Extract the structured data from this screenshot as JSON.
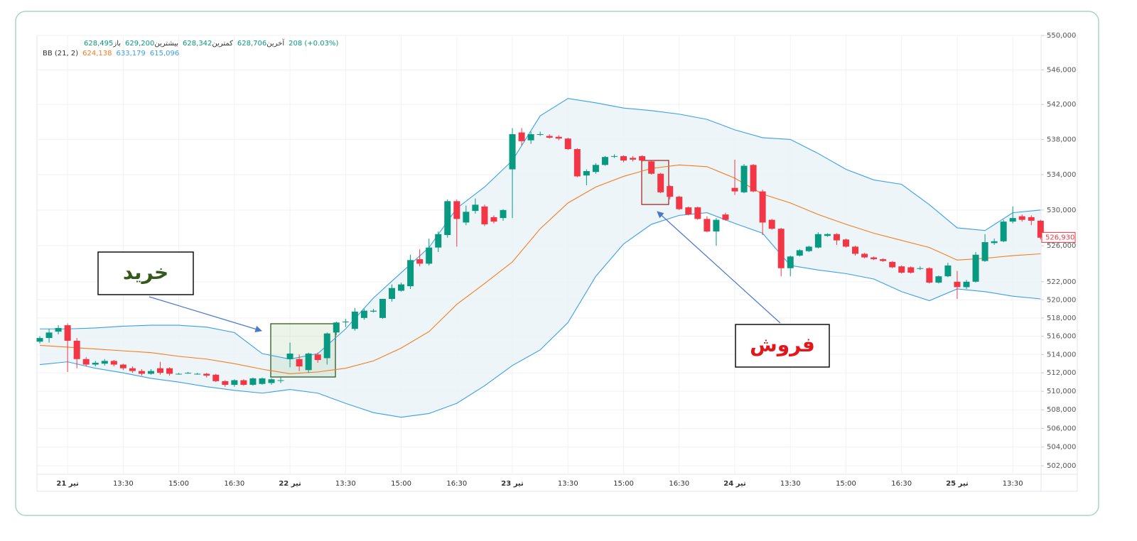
{
  "chart_data": {
    "type": "candlestick",
    "legend": {
      "items": [
        {
          "label": "باز",
          "value": "628,495"
        },
        {
          "label": "بیشترین",
          "value": "629,200"
        },
        {
          "label": "کمترین",
          "value": "628,342"
        },
        {
          "label": "آخرین",
          "value": "628,706"
        }
      ],
      "change": "208 (+0.03%)"
    },
    "categories": [
      null,
      null,
      null,
      "21 تیر",
      null,
      null,
      null,
      null,
      null,
      "13:30",
      null,
      null,
      null,
      null,
      null,
      "15:00",
      null,
      null,
      null,
      null,
      null,
      "16:30",
      null,
      null,
      null,
      null,
      null,
      "22 تیر",
      null,
      null,
      null,
      null,
      null,
      "13:30",
      null,
      null,
      null,
      null,
      null,
      "15:00",
      null,
      null,
      null,
      null,
      null,
      "16:30",
      null,
      null,
      null,
      null,
      null,
      "23 تیر",
      null,
      null,
      null,
      null,
      null,
      "13:30",
      null,
      null,
      null,
      null,
      null,
      "15:00",
      null,
      null,
      null,
      null,
      null,
      "16:30",
      null,
      null,
      null,
      null,
      null,
      "24 تیر",
      null,
      null,
      null,
      null,
      null,
      "13:30",
      null,
      null,
      null,
      null,
      null,
      "15:00",
      null,
      null,
      null,
      null,
      null,
      "16:30",
      null,
      null,
      null,
      null,
      null,
      "25 تیر",
      null,
      null,
      null,
      null,
      null,
      "13:30",
      null,
      null,
      null
    ],
    "open": [
      515400,
      515800,
      516500,
      517200,
      515500,
      513500,
      512900,
      513000,
      513300,
      512900,
      512500,
      512200,
      511900,
      512500,
      512500,
      511900,
      512000,
      511900,
      511900,
      511800,
      511100,
      510700,
      511200,
      510700,
      510800,
      510900,
      511200,
      513500,
      513500,
      512300,
      514000,
      513600,
      516400,
      517600,
      516800,
      518000,
      518700,
      518000,
      520100,
      521000,
      521500,
      524500,
      524000,
      525800,
      527200,
      531000,
      528600,
      529900,
      530400,
      529200,
      529100,
      534600,
      538800,
      537900,
      538600,
      538400,
      538300,
      538100,
      536900,
      533900,
      534300,
      535100,
      536100,
      536100,
      535900,
      536100,
      535500,
      534100,
      532700,
      531500,
      530300,
      530300,
      529000,
      527600,
      529500,
      532500,
      532000,
      535100,
      532100,
      528900,
      527900,
      523500,
      524900,
      525400,
      525800,
      527100,
      527300,
      526700,
      525900,
      525100,
      524700,
      524500,
      524200,
      523700,
      523600,
      523500,
      523500,
      521900,
      522600,
      522000,
      521400,
      522000,
      524300,
      526300,
      526500,
      528700,
      529300,
      529200,
      528800
    ],
    "high": [
      516000,
      516800,
      517200,
      517400,
      515800,
      513700,
      513300,
      513500,
      513400,
      513000,
      512700,
      512400,
      512400,
      513200,
      512600,
      512000,
      512100,
      512000,
      512000,
      511900,
      511200,
      511300,
      511300,
      511500,
      511500,
      511400,
      511500,
      515300,
      514000,
      514200,
      514200,
      516400,
      517600,
      517900,
      519100,
      519000,
      519000,
      520100,
      521700,
      521900,
      525000,
      525600,
      526800,
      527600,
      531200,
      531200,
      530500,
      531300,
      530600,
      529400,
      530100,
      539300,
      539300,
      538900,
      538900,
      538600,
      538500,
      538200,
      537000,
      534600,
      535300,
      536100,
      536300,
      536200,
      536100,
      536200,
      535600,
      534200,
      532800,
      531600,
      530400,
      530400,
      529300,
      529100,
      529700,
      535700,
      535200,
      535200,
      532300,
      529000,
      528000,
      524900,
      525600,
      526000,
      527500,
      527400,
      527400,
      526800,
      526000,
      525200,
      524800,
      524600,
      524300,
      523800,
      523700,
      523700,
      523600,
      522700,
      524100,
      523200,
      522200,
      525300,
      527300,
      526800,
      528900,
      530400,
      529500,
      529400,
      528900
    ],
    "low": [
      515200,
      515300,
      516200,
      512100,
      512500,
      512700,
      512700,
      512800,
      512700,
      512300,
      512000,
      511700,
      511800,
      511800,
      511700,
      511800,
      511900,
      511800,
      511500,
      511000,
      510500,
      510500,
      510600,
      510600,
      510700,
      510700,
      510900,
      512600,
      512200,
      512000,
      513100,
      512900,
      516100,
      517000,
      516600,
      517800,
      518600,
      517900,
      519800,
      520900,
      521200,
      523700,
      523800,
      525300,
      526900,
      525900,
      528300,
      529600,
      528200,
      528500,
      528800,
      529100,
      537300,
      537500,
      538400,
      538100,
      537900,
      536800,
      533700,
      532800,
      534100,
      535000,
      535900,
      535400,
      535500,
      535400,
      534000,
      531900,
      531200,
      530000,
      529400,
      528900,
      527500,
      526000,
      528800,
      531700,
      531900,
      532000,
      527200,
      527800,
      522600,
      522600,
      524800,
      525300,
      525700,
      527000,
      526100,
      525800,
      524900,
      524600,
      524400,
      524200,
      523500,
      522900,
      522900,
      523300,
      521800,
      521800,
      522500,
      520100,
      521200,
      521900,
      524200,
      526100,
      526400,
      528500,
      528700,
      528300,
      526700
    ],
    "close": [
      515800,
      516400,
      516900,
      515500,
      513500,
      512900,
      513100,
      513300,
      512900,
      512500,
      512200,
      511900,
      512200,
      512000,
      511900,
      511900,
      512000,
      511900,
      511700,
      511100,
      510700,
      511200,
      510700,
      511400,
      511400,
      511300,
      511200,
      514100,
      512700,
      514100,
      513400,
      516300,
      517500,
      517600,
      518700,
      518800,
      518800,
      520100,
      521300,
      521700,
      524400,
      524000,
      525800,
      527300,
      531000,
      529000,
      529800,
      530600,
      528400,
      528700,
      530000,
      538600,
      537800,
      538600,
      538600,
      538200,
      538100,
      536900,
      533800,
      534400,
      535100,
      536000,
      536100,
      535600,
      535700,
      535600,
      534100,
      532000,
      531500,
      530100,
      529500,
      529000,
      527600,
      528900,
      528900,
      532100,
      535000,
      532100,
      528600,
      527900,
      523500,
      524800,
      525500,
      525900,
      527300,
      527300,
      526600,
      525900,
      525100,
      524700,
      524500,
      524300,
      523600,
      523000,
      523000,
      523500,
      521900,
      522600,
      523800,
      521400,
      522000,
      525000,
      526400,
      526500,
      528700,
      529100,
      528900,
      528800,
      526900
    ],
    "up_color": "#089981",
    "down_color": "#f23645",
    "bands": {
      "title": "BB (21, 2)",
      "fill": "#e9f3f8",
      "x": [
        0,
        3,
        6,
        9,
        12,
        15,
        18,
        21,
        24,
        27,
        30,
        33,
        36,
        39,
        42,
        45,
        48,
        51,
        54,
        57,
        60,
        63,
        66,
        69,
        72,
        75,
        78,
        81,
        84,
        87,
        90,
        93,
        96,
        99,
        102,
        105,
        108
      ],
      "series": [
        {
          "color": "#f57c1f",
          "legend_value": "624,138",
          "values": [
            515000,
            514800,
            514600,
            514400,
            514200,
            513800,
            513500,
            513000,
            512400,
            511900,
            512100,
            512500,
            513300,
            514700,
            516500,
            519500,
            521800,
            524200,
            527900,
            530800,
            532600,
            533800,
            534700,
            535100,
            534900,
            533600,
            531800,
            530800,
            529500,
            528400,
            527400,
            526600,
            525800,
            524400,
            524600,
            524900,
            525100
          ]
        },
        {
          "color": "#3a9fe6",
          "legend_value": "633,179",
          "values": [
            516800,
            516800,
            516900,
            517100,
            517200,
            517200,
            517000,
            516400,
            514100,
            513500,
            514100,
            516800,
            520200,
            523000,
            525800,
            530200,
            532600,
            535600,
            540700,
            542700,
            542200,
            541600,
            541300,
            540900,
            540300,
            539100,
            538200,
            538000,
            536400,
            534600,
            533400,
            532900,
            530600,
            528000,
            527700,
            529700,
            530000
          ]
        },
        {
          "color": "#3a9fe6",
          "legend_value": "615,096",
          "values": [
            512900,
            513200,
            512500,
            512000,
            511400,
            511000,
            510500,
            510100,
            509800,
            510200,
            509800,
            508700,
            507700,
            507200,
            507600,
            508700,
            510600,
            512800,
            514500,
            517500,
            522600,
            526200,
            528400,
            529400,
            529700,
            528500,
            527400,
            523800,
            523300,
            522900,
            522300,
            520900,
            519900,
            521200,
            520900,
            520400,
            520100
          ]
        }
      ]
    },
    "last_price": {
      "value": 526930,
      "label": "526,930"
    },
    "ylim": [
      501100,
      550000
    ],
    "log_scale": true,
    "grid": true,
    "yticks": [
      {
        "value": 502000,
        "label": "502,000"
      },
      {
        "value": 504000,
        "label": "504,000"
      },
      {
        "value": 506000,
        "label": "506,000"
      },
      {
        "value": 508000,
        "label": "508,000"
      },
      {
        "value": 510000,
        "label": "510,000"
      },
      {
        "value": 512000,
        "label": "512,000"
      },
      {
        "value": 514000,
        "label": "514,000"
      },
      {
        "value": 516000,
        "label": "516,000"
      },
      {
        "value": 518000,
        "label": "518,000"
      },
      {
        "value": 520000,
        "label": "520,000"
      },
      {
        "value": 522000,
        "label": "522,000"
      },
      {
        "value": 526000,
        "label": "526,000"
      },
      {
        "value": 530000,
        "label": "530,000"
      },
      {
        "value": 534000,
        "label": "534,000"
      },
      {
        "value": 538000,
        "label": "538,000"
      },
      {
        "value": 542000,
        "label": "542,000"
      },
      {
        "value": 546000,
        "label": "546,000"
      },
      {
        "value": 550000,
        "label": "550,000"
      }
    ],
    "annotations": [
      {
        "text": "خرید",
        "color": "#35581c"
      },
      {
        "text": "فروش",
        "color": "#e3161b"
      }
    ]
  }
}
